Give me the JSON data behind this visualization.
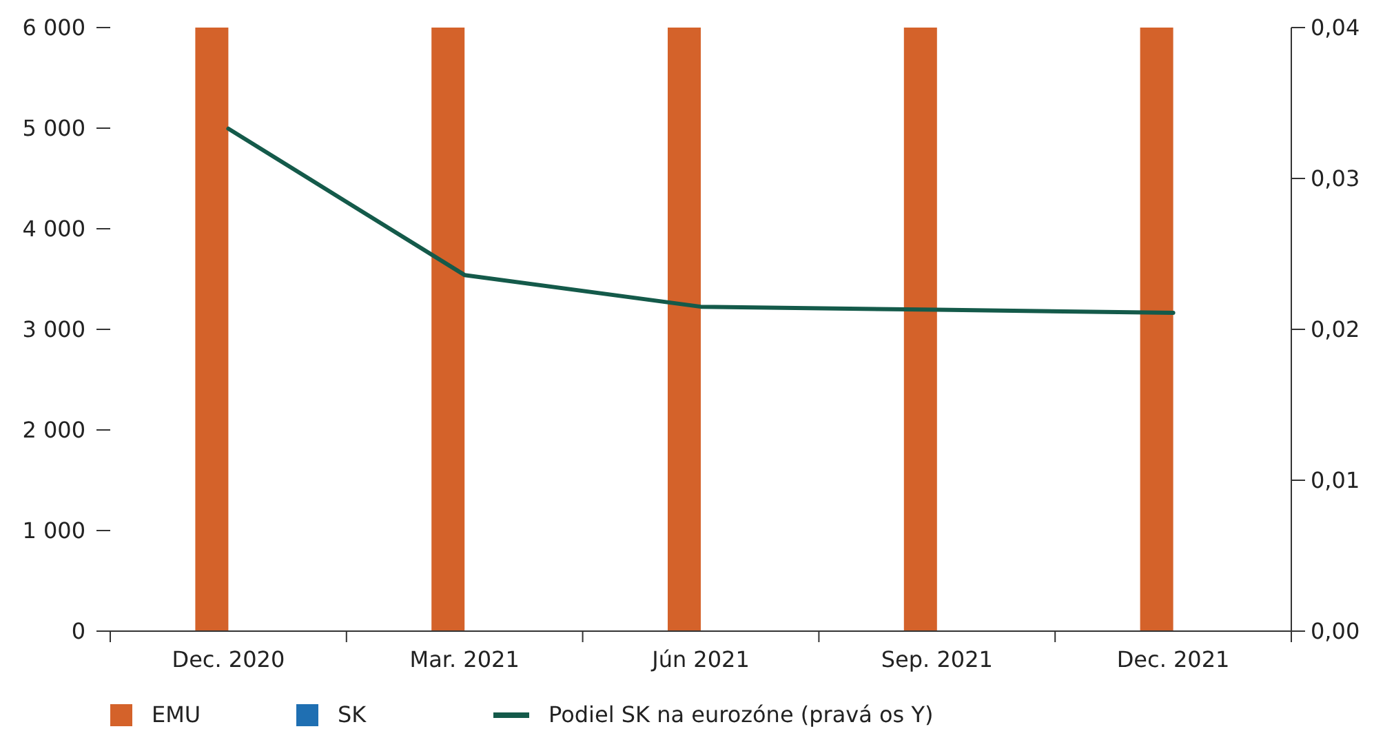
{
  "chart_data": {
    "type": "bar",
    "categories": [
      "Dec. 2020",
      "Mar. 2021",
      "Jún 2021",
      "Sep. 2021",
      "Dec. 2021"
    ],
    "series": [
      {
        "name": "EMU",
        "color": "#d4622a",
        "values": [
          6000,
          6000,
          6000,
          6000,
          6000
        ]
      },
      {
        "name": "SK",
        "color": "#1f6fb2",
        "values": [
          null,
          null,
          null,
          null,
          null
        ]
      },
      {
        "name": "Podiel SK na eurozóne (pravá os Y)",
        "type": "line",
        "axis": "y2",
        "color": "#145a4a",
        "values": [
          0.0333,
          0.0236,
          0.0215,
          0.0213,
          0.0211
        ]
      }
    ],
    "ylim": [
      0,
      6000
    ],
    "yticks": [
      {
        "value": 0,
        "label": "0"
      },
      {
        "value": 1000,
        "label": "1 000"
      },
      {
        "value": 2000,
        "label": "2 000"
      },
      {
        "value": 3000,
        "label": "3 000"
      },
      {
        "value": 4000,
        "label": "4 000"
      },
      {
        "value": 5000,
        "label": "5 000"
      },
      {
        "value": 6000,
        "label": "6 000"
      }
    ],
    "y2lim": [
      0,
      0.04
    ],
    "y2ticks": [
      {
        "value": 0,
        "label": "0,00"
      },
      {
        "value": 0.01,
        "label": "0,01"
      },
      {
        "value": 0.02,
        "label": "0,02"
      },
      {
        "value": 0.03,
        "label": "0,03"
      },
      {
        "value": 0.04,
        "label": "0,04"
      }
    ],
    "legend": "bottom",
    "grid": false,
    "marker": "none",
    "line_style": "solid"
  }
}
